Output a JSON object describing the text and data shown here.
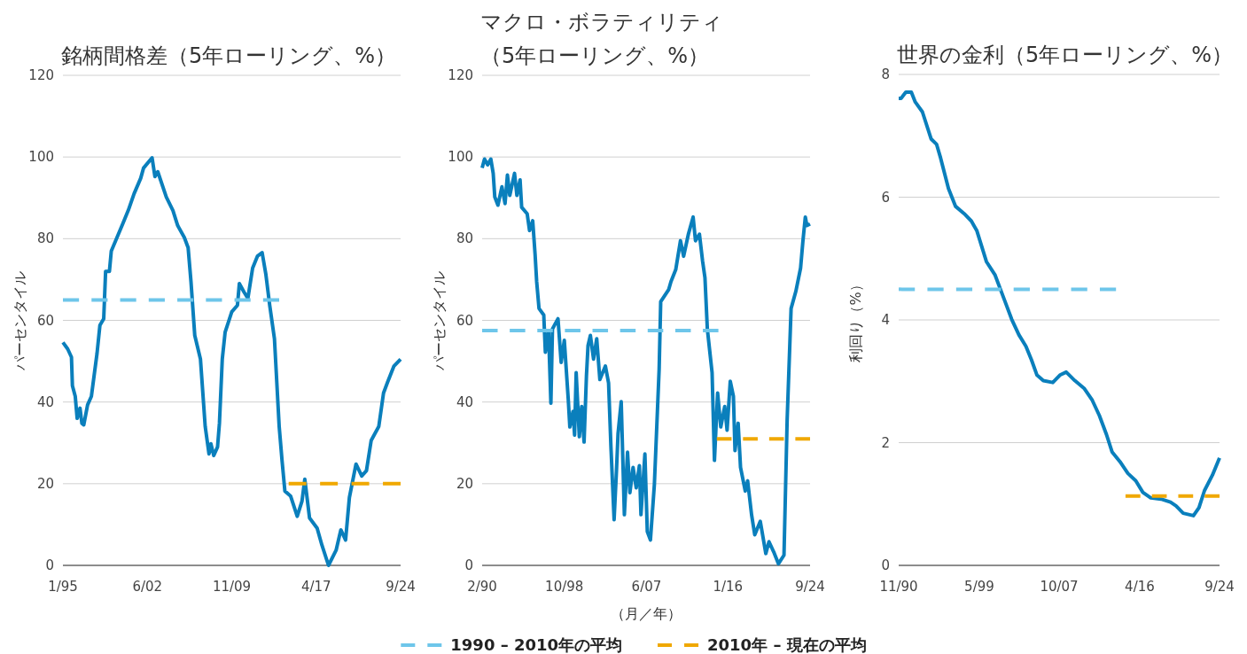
{
  "chart_data": [
    {
      "type": "line",
      "title": "銘柄間格差（5年ローリング、%）",
      "ylabel": "パーセンタイル",
      "xlim": [
        "1995-01",
        "2024-09"
      ],
      "xticks": [
        {
          "value": "1995-01",
          "label": "1/95"
        },
        {
          "value": "2002-06",
          "label": "6/02"
        },
        {
          "value": "2009-11",
          "label": "11/09"
        },
        {
          "value": "2017-04",
          "label": "4/17"
        },
        {
          "value": "2024-09",
          "label": "9/24"
        }
      ],
      "ylim": [
        0,
        120
      ],
      "yticks": [
        0,
        20,
        40,
        60,
        80,
        100,
        120
      ],
      "grid": "y",
      "legend": "bottom",
      "series": [
        {
          "color": "#0a7fbc",
          "x": [
            "1995-01",
            "1995-06",
            "1995-10",
            "1995-11",
            "1996-02",
            "1996-04",
            "1996-07",
            "1996-09",
            "1996-11",
            "1997-03",
            "1997-07",
            "1998-01",
            "1998-04",
            "1998-08",
            "1998-10",
            "1999-02",
            "1999-04",
            "1999-10",
            "2000-04",
            "2000-10",
            "2001-04",
            "2001-11",
            "2002-02",
            "2002-11",
            "2003-02",
            "2003-05",
            "2004-02",
            "2004-09",
            "2005-02",
            "2005-09",
            "2006-01",
            "2006-04",
            "2006-08",
            "2007-02",
            "2007-07",
            "2007-11",
            "2008-01",
            "2008-04",
            "2008-08",
            "2008-10",
            "2009-01",
            "2009-04",
            "2009-11",
            "2010-05",
            "2010-07",
            "2010-12",
            "2011-04",
            "2011-09",
            "2012-02",
            "2012-07",
            "2012-11",
            "2013-03",
            "2013-08",
            "2014-01",
            "2014-04",
            "2014-07",
            "2015-01",
            "2015-08",
            "2016-01",
            "2016-04",
            "2016-09",
            "2017-05",
            "2017-10",
            "2018-05",
            "2019-01",
            "2019-06",
            "2019-11",
            "2020-03",
            "2020-10",
            "2021-04",
            "2021-09",
            "2022-02",
            "2022-10",
            "2023-03",
            "2023-07",
            "2024-02",
            "2024-09"
          ],
          "values": [
            54.6,
            53,
            51,
            44,
            41.4,
            36,
            38.5,
            34.8,
            34.4,
            39.3,
            41.4,
            52,
            58.8,
            60.4,
            72,
            72,
            77,
            80.3,
            83.6,
            87,
            91,
            94.8,
            97.3,
            99.8,
            95.2,
            96.4,
            90.2,
            86.9,
            83.2,
            80.3,
            77.8,
            69.5,
            56.3,
            50.5,
            34,
            27.3,
            29.8,
            26.9,
            29,
            34.8,
            50.5,
            57.1,
            62.1,
            63.7,
            69,
            66.9,
            65.4,
            72.8,
            75.7,
            76.6,
            71.2,
            63.7,
            55.5,
            34,
            25.7,
            18.2,
            17,
            12,
            15.7,
            21.1,
            11.6,
            9.1,
            5,
            0,
            3.7,
            8.7,
            6.2,
            16.6,
            24.8,
            21.9,
            23.2,
            30.6,
            34,
            42.2,
            44.7,
            48.8,
            50.5
          ]
        },
        {
          "name": "1990 – 2010年の平均",
          "color": "#6ec6ea",
          "line_style": "dashed",
          "x": [
            "1995-01",
            "2014-01"
          ],
          "values": [
            65,
            65
          ]
        },
        {
          "name": "2010年 – 現在の平均",
          "color": "#f0a800",
          "line_style": "dashed",
          "x": [
            "2014-11",
            "2024-09"
          ],
          "values": [
            20,
            20
          ]
        }
      ]
    },
    {
      "type": "line",
      "title": "マクロ・ボラティリティ（5年ローリング、%）",
      "ylabel": "パーセンタイル",
      "xlabel": "（月／年）",
      "xlim": [
        "1990-02",
        "2024-09"
      ],
      "xticks": [
        {
          "value": "1990-02",
          "label": "2/90"
        },
        {
          "value": "1998-10",
          "label": "10/98"
        },
        {
          "value": "2007-06",
          "label": "6/07"
        },
        {
          "value": "2016-01",
          "label": "1/16"
        },
        {
          "value": "2024-09",
          "label": "9/24"
        }
      ],
      "ylim": [
        0,
        120
      ],
      "yticks": [
        0,
        20,
        40,
        60,
        80,
        100,
        120
      ],
      "grid": "y",
      "series": [
        {
          "color": "#0a7fbc",
          "x": [
            "1990-02",
            "1990-05",
            "1990-09",
            "1991-01",
            "1991-04",
            "1991-06",
            "1991-10",
            "1992-03",
            "1992-07",
            "1992-10",
            "1993-01",
            "1993-07",
            "1993-10",
            "1994-02",
            "1994-04",
            "1994-11",
            "1995-02",
            "1995-06",
            "1995-09",
            "1995-11",
            "1996-02",
            "1996-08",
            "1996-10",
            "1997-02",
            "1997-05",
            "1997-07",
            "1998-02",
            "1998-06",
            "1998-10",
            "1999-03",
            "1999-05",
            "1999-09",
            "1999-11",
            "2000-01",
            "2000-05",
            "2000-08",
            "2000-11",
            "2001-02",
            "2001-04",
            "2001-07",
            "2001-11",
            "2002-03",
            "2002-07",
            "2003-02",
            "2003-06",
            "2003-09",
            "2004-01",
            "2004-04",
            "2004-06",
            "2004-10",
            "2005-02",
            "2005-06",
            "2005-09",
            "2006-01",
            "2006-05",
            "2006-09",
            "2006-11",
            "2007-04",
            "2007-07",
            "2007-11",
            "2008-04",
            "2008-10",
            "2008-12",
            "2009-10",
            "2010-01",
            "2010-07",
            "2011-01",
            "2011-05",
            "2011-11",
            "2012-05",
            "2012-08",
            "2013-01",
            "2013-05",
            "2013-08",
            "2013-11",
            "2014-05",
            "2014-08",
            "2014-12",
            "2015-04",
            "2015-09",
            "2015-12",
            "2016-04",
            "2016-08",
            "2016-10",
            "2017-02",
            "2017-05",
            "2017-11",
            "2018-02",
            "2018-07",
            "2018-11",
            "2019-06",
            "2020-01",
            "2020-05",
            "2020-11",
            "2021-05",
            "2021-12",
            "2022-04",
            "2022-09",
            "2023-03",
            "2023-09",
            "2023-12",
            "2024-03",
            "2024-05",
            "2024-09"
          ],
          "values": [
            97.3,
            99.5,
            98.1,
            99.5,
            96,
            90.2,
            88.2,
            92.7,
            88.6,
            95.6,
            90.6,
            96,
            90.6,
            94.4,
            87.7,
            86.1,
            82,
            84.4,
            76.2,
            69.5,
            62.9,
            61.3,
            52.2,
            57.5,
            39.7,
            57.9,
            60.4,
            49.7,
            55.1,
            40.6,
            33.9,
            37.7,
            31.9,
            47.2,
            31.5,
            38.9,
            30.2,
            46.4,
            53.8,
            56.3,
            50.5,
            55.5,
            45.5,
            48.8,
            44.7,
            29,
            11.2,
            23.2,
            32.3,
            40.1,
            12.4,
            27.7,
            17.8,
            24,
            19,
            24.4,
            12.4,
            27.3,
            8.3,
            6.2,
            19.9,
            48,
            64.6,
            67.5,
            69.5,
            72.4,
            79.5,
            75.7,
            81.1,
            85.3,
            79.5,
            81.1,
            74.5,
            70.4,
            57.9,
            47.2,
            25.7,
            42.2,
            33.9,
            38.9,
            33.1,
            45.1,
            41.4,
            28.1,
            34.8,
            24,
            18.2,
            20.7,
            12.4,
            7.5,
            10.8,
            2.9,
            5.8,
            3.3,
            0.4,
            2.5,
            35.6,
            62.9,
            67.1,
            72.8,
            79.5,
            85.3,
            83.2,
            83.6
          ]
        },
        {
          "color": "#6ec6ea",
          "line_style": "dashed",
          "x": [
            "1990-02",
            "2015-01"
          ],
          "values": [
            57.5,
            57.5
          ]
        },
        {
          "color": "#f0a800",
          "line_style": "dashed",
          "x": [
            "2014-11",
            "2024-09"
          ],
          "values": [
            31,
            31
          ]
        }
      ]
    },
    {
      "type": "line",
      "title": "世界の金利（5年ローリング、%）",
      "ylabel": "利回り（%）",
      "xlim": [
        "1990-11",
        "2024-09"
      ],
      "xticks": [
        {
          "value": "1990-11",
          "label": "11/90"
        },
        {
          "value": "1999-05",
          "label": "5/99"
        },
        {
          "value": "2007-10",
          "label": "10/07"
        },
        {
          "value": "2016-04",
          "label": "4/16"
        },
        {
          "value": "2024-09",
          "label": "9/24"
        }
      ],
      "ylim": [
        0,
        8
      ],
      "yticks": [
        0,
        2,
        4,
        6,
        8
      ],
      "grid": "y",
      "series": [
        {
          "color": "#0a7fbc",
          "x": [
            "1990-11",
            "1991-02",
            "1991-08",
            "1992-03",
            "1992-08",
            "1993-05",
            "1994-04",
            "1994-11",
            "1995-04",
            "1996-02",
            "1996-11",
            "1997-10",
            "1998-07",
            "1999-02",
            "2000-02",
            "2001-01",
            "2002-01",
            "2002-10",
            "2003-07",
            "2004-04",
            "2004-11",
            "2005-06",
            "2006-02",
            "2007-02",
            "2007-11",
            "2008-07",
            "2009-06",
            "2010-06",
            "2011-04",
            "2012-01",
            "2012-10",
            "2013-05",
            "2014-03",
            "2015-01",
            "2015-11",
            "2016-08",
            "2017-06",
            "2018-07",
            "2019-07",
            "2020-02",
            "2020-11",
            "2021-12",
            "2022-07",
            "2023-02",
            "2023-12",
            "2024-09"
          ],
          "values": [
            7.61,
            7.61,
            7.71,
            7.71,
            7.55,
            7.39,
            6.95,
            6.86,
            6.64,
            6.14,
            5.85,
            5.73,
            5.61,
            5.45,
            4.95,
            4.73,
            4.32,
            4.01,
            3.76,
            3.57,
            3.35,
            3.1,
            3.01,
            2.98,
            3.1,
            3.15,
            3.01,
            2.88,
            2.69,
            2.44,
            2.13,
            1.85,
            1.69,
            1.5,
            1.38,
            1.19,
            1.1,
            1.08,
            1.03,
            0.97,
            0.85,
            0.81,
            0.94,
            1.22,
            1.47,
            1.75
          ]
        },
        {
          "color": "#6ec6ea",
          "line_style": "dashed",
          "x": [
            "1990-11",
            "2013-10"
          ],
          "values": [
            4.5,
            4.5
          ]
        },
        {
          "color": "#f0a800",
          "line_style": "dashed",
          "x": [
            "2014-10",
            "2024-09"
          ],
          "values": [
            1.13,
            1.13
          ]
        }
      ]
    }
  ]
}
